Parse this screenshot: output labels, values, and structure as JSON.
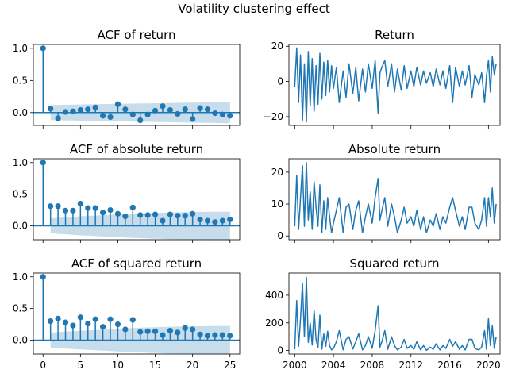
{
  "suptitle": "Volatility clustering effect",
  "colors": {
    "line": "#1f77b4",
    "band": "#1f77b4",
    "frame": "#000000"
  },
  "chart_data": [
    {
      "type": "stem",
      "title": "ACF of return",
      "xlim": [
        -1.3,
        26.3
      ],
      "ylim": [
        -0.2,
        1.06
      ],
      "yticks": [
        1.0,
        0.5,
        0.0
      ],
      "ytick_labels": [
        "1.0",
        "0.5",
        "0.0"
      ],
      "xticks": [
        0,
        5,
        10,
        15,
        20,
        25
      ],
      "xtick_labels": [],
      "lags": [
        0,
        1,
        2,
        3,
        4,
        5,
        6,
        7,
        8,
        9,
        10,
        11,
        12,
        13,
        14,
        15,
        16,
        17,
        18,
        19,
        20,
        21,
        22,
        23,
        24,
        25
      ],
      "values": [
        1.0,
        0.06,
        -0.09,
        0.01,
        0.02,
        0.04,
        0.05,
        0.08,
        -0.05,
        -0.07,
        0.13,
        0.05,
        -0.03,
        -0.12,
        -0.03,
        0.03,
        0.1,
        0.04,
        -0.02,
        0.05,
        -0.1,
        0.07,
        0.05,
        -0.01,
        -0.03,
        -0.05
      ],
      "conf_band": [
        0.118,
        0.12,
        0.122,
        0.124,
        0.126,
        0.128,
        0.13,
        0.132,
        0.134,
        0.136,
        0.138,
        0.14,
        0.142,
        0.144,
        0.146,
        0.148,
        0.15,
        0.152,
        0.154,
        0.156,
        0.158,
        0.16,
        0.162,
        0.164,
        0.166
      ]
    },
    {
      "type": "line",
      "title": "Return",
      "xlim": [
        1999.4,
        2021.2
      ],
      "ylim": [
        -25,
        21
      ],
      "yticks": [
        20,
        0,
        -20
      ],
      "ytick_labels": [
        "20",
        "0",
        "−20"
      ],
      "xticks": [
        2000,
        2004,
        2008,
        2012,
        2016,
        2020
      ],
      "xtick_labels": [],
      "x": [
        2000,
        2000.2,
        2000.4,
        2000.6,
        2000.8,
        2001,
        2001.2,
        2001.4,
        2001.6,
        2001.8,
        2002,
        2002.2,
        2002.4,
        2002.6,
        2002.8,
        2003,
        2003.2,
        2003.4,
        2003.6,
        2003.8,
        2004,
        2004.3,
        2004.6,
        2005,
        2005.3,
        2005.6,
        2006,
        2006.3,
        2006.6,
        2007,
        2007.3,
        2007.6,
        2008,
        2008.3,
        2008.6,
        2008.8,
        2009,
        2009.3,
        2009.6,
        2010,
        2010.3,
        2010.6,
        2011,
        2011.3,
        2011.6,
        2012,
        2012.3,
        2012.6,
        2013,
        2013.3,
        2013.6,
        2014,
        2014.3,
        2014.6,
        2015,
        2015.3,
        2015.6,
        2016,
        2016.3,
        2016.6,
        2017,
        2017.3,
        2017.6,
        2018,
        2018.3,
        2018.6,
        2019,
        2019.3,
        2019.6,
        2019.8,
        2020,
        2020.2,
        2020.4,
        2020.6,
        2020.8
      ],
      "y": [
        -3,
        19,
        -12,
        15,
        -22,
        10,
        -23,
        17,
        -14,
        13,
        -17,
        9,
        -13,
        16,
        -10,
        11,
        -8,
        12,
        -6,
        9,
        -4,
        8,
        -12,
        6,
        -9,
        10,
        -7,
        8,
        -11,
        7,
        -6,
        10,
        -4,
        12,
        -18,
        5,
        8,
        12,
        -3,
        10,
        -6,
        7,
        -5,
        9,
        -4,
        6,
        -3,
        8,
        -2,
        6,
        -1,
        5,
        -3,
        7,
        -2,
        6,
        -4,
        9,
        -12,
        8,
        -3,
        6,
        -2,
        9,
        -9,
        4,
        -2,
        5,
        -12,
        3,
        12,
        -6,
        14,
        4,
        10
      ]
    },
    {
      "type": "stem",
      "title": "ACF of absolute return",
      "xlim": [
        -1.3,
        26.3
      ],
      "ylim": [
        -0.22,
        1.06
      ],
      "yticks": [
        1.0,
        0.5,
        0.0
      ],
      "ytick_labels": [
        "1.0",
        "0.5",
        "0.0"
      ],
      "xticks": [
        0,
        5,
        10,
        15,
        20,
        25
      ],
      "xtick_labels": [],
      "lags": [
        0,
        1,
        2,
        3,
        4,
        5,
        6,
        7,
        8,
        9,
        10,
        11,
        12,
        13,
        14,
        15,
        16,
        17,
        18,
        19,
        20,
        21,
        22,
        23,
        24,
        25
      ],
      "values": [
        1.0,
        0.31,
        0.31,
        0.24,
        0.24,
        0.35,
        0.28,
        0.28,
        0.21,
        0.25,
        0.19,
        0.15,
        0.29,
        0.17,
        0.17,
        0.18,
        0.08,
        0.18,
        0.16,
        0.16,
        0.19,
        0.1,
        0.08,
        0.06,
        0.08,
        0.1
      ],
      "conf_band": [
        0.118,
        0.126,
        0.134,
        0.142,
        0.15,
        0.156,
        0.162,
        0.168,
        0.174,
        0.18,
        0.185,
        0.19,
        0.195,
        0.2,
        0.204,
        0.208,
        0.212,
        0.214,
        0.216,
        0.218,
        0.22,
        0.221,
        0.222,
        0.223,
        0.224
      ]
    },
    {
      "type": "line",
      "title": "Absolute return",
      "xlim": [
        1999.4,
        2021.2
      ],
      "ylim": [
        -1.2,
        24.2
      ],
      "yticks": [
        20,
        10,
        0
      ],
      "ytick_labels": [
        "20",
        "10",
        "0"
      ],
      "xticks": [
        2000,
        2004,
        2008,
        2012,
        2016,
        2020
      ],
      "xtick_labels": [],
      "x": [
        2000,
        2000.2,
        2000.4,
        2000.6,
        2000.8,
        2001,
        2001.2,
        2001.4,
        2001.6,
        2001.8,
        2002,
        2002.2,
        2002.4,
        2002.6,
        2002.8,
        2003,
        2003.2,
        2003.4,
        2003.6,
        2003.8,
        2004,
        2004.3,
        2004.6,
        2005,
        2005.3,
        2005.6,
        2006,
        2006.3,
        2006.6,
        2007,
        2007.3,
        2007.6,
        2008,
        2008.3,
        2008.6,
        2008.8,
        2009,
        2009.3,
        2009.6,
        2010,
        2010.3,
        2010.6,
        2011,
        2011.3,
        2011.6,
        2012,
        2012.3,
        2012.6,
        2013,
        2013.3,
        2013.6,
        2014,
        2014.3,
        2014.6,
        2015,
        2015.3,
        2015.6,
        2016,
        2016.3,
        2016.6,
        2017,
        2017.3,
        2017.6,
        2018,
        2018.3,
        2018.6,
        2019,
        2019.3,
        2019.6,
        2019.8,
        2020,
        2020.2,
        2020.4,
        2020.6,
        2020.8
      ],
      "y": [
        3,
        19,
        2,
        12,
        22,
        3,
        23,
        5,
        14,
        2,
        17,
        9,
        3,
        16,
        1,
        11,
        2,
        12,
        6,
        1,
        4,
        8,
        12,
        1,
        9,
        10,
        2,
        8,
        11,
        1,
        6,
        10,
        4,
        12,
        18,
        5,
        8,
        12,
        3,
        10,
        6,
        1,
        5,
        9,
        4,
        6,
        3,
        8,
        2,
        6,
        1,
        5,
        3,
        7,
        2,
        6,
        4,
        9,
        12,
        8,
        3,
        6,
        2,
        9,
        9,
        4,
        2,
        5,
        12,
        3,
        12,
        6,
        15,
        4,
        10
      ]
    },
    {
      "type": "stem",
      "title": "ACF of squared return",
      "xlim": [
        -1.3,
        26.3
      ],
      "ylim": [
        -0.22,
        1.06
      ],
      "yticks": [
        1.0,
        0.5,
        0.0
      ],
      "ytick_labels": [
        "1.0",
        "0.5",
        "0.0"
      ],
      "xticks": [
        0,
        5,
        10,
        15,
        20,
        25
      ],
      "xtick_labels": [
        "0",
        "5",
        "10",
        "15",
        "20",
        "25"
      ],
      "lags": [
        0,
        1,
        2,
        3,
        4,
        5,
        6,
        7,
        8,
        9,
        10,
        11,
        12,
        13,
        14,
        15,
        16,
        17,
        18,
        19,
        20,
        21,
        22,
        23,
        24,
        25
      ],
      "values": [
        1.0,
        0.3,
        0.34,
        0.28,
        0.23,
        0.36,
        0.26,
        0.33,
        0.21,
        0.33,
        0.25,
        0.17,
        0.32,
        0.13,
        0.14,
        0.14,
        0.08,
        0.15,
        0.12,
        0.19,
        0.17,
        0.09,
        0.07,
        0.08,
        0.08,
        0.07
      ],
      "conf_band": [
        0.118,
        0.126,
        0.134,
        0.142,
        0.148,
        0.154,
        0.16,
        0.166,
        0.172,
        0.178,
        0.184,
        0.19,
        0.195,
        0.2,
        0.204,
        0.208,
        0.212,
        0.214,
        0.216,
        0.218,
        0.22,
        0.221,
        0.222,
        0.223,
        0.224
      ]
    },
    {
      "type": "line",
      "title": "Squared return",
      "xlim": [
        1999.4,
        2021.2
      ],
      "ylim": [
        -25,
        560
      ],
      "yticks": [
        400,
        200,
        0
      ],
      "ytick_labels": [
        "400",
        "200",
        "0"
      ],
      "xticks": [
        2000,
        2004,
        2008,
        2012,
        2016,
        2020
      ],
      "xtick_labels": [
        "2000",
        "2004",
        "2008",
        "2012",
        "2016",
        "2020"
      ],
      "x": [
        2000,
        2000.2,
        2000.4,
        2000.6,
        2000.8,
        2001,
        2001.2,
        2001.4,
        2001.6,
        2001.8,
        2002,
        2002.2,
        2002.4,
        2002.6,
        2002.8,
        2003,
        2003.2,
        2003.4,
        2003.6,
        2003.8,
        2004,
        2004.3,
        2004.6,
        2005,
        2005.3,
        2005.6,
        2006,
        2006.3,
        2006.6,
        2007,
        2007.3,
        2007.6,
        2008,
        2008.3,
        2008.6,
        2008.8,
        2009,
        2009.3,
        2009.6,
        2010,
        2010.3,
        2010.6,
        2011,
        2011.3,
        2011.6,
        2012,
        2012.3,
        2012.6,
        2013,
        2013.3,
        2013.6,
        2014,
        2014.3,
        2014.6,
        2015,
        2015.3,
        2015.6,
        2016,
        2016.3,
        2016.6,
        2017,
        2017.3,
        2017.6,
        2018,
        2018.3,
        2018.6,
        2019,
        2019.3,
        2019.6,
        2019.8,
        2020,
        2020.2,
        2020.4,
        2020.6,
        2020.8
      ],
      "y": [
        9,
        361,
        30,
        230,
        484,
        100,
        529,
        60,
        200,
        40,
        290,
        81,
        20,
        256,
        10,
        120,
        30,
        140,
        36,
        5,
        16,
        64,
        144,
        5,
        81,
        100,
        10,
        64,
        121,
        5,
        36,
        100,
        16,
        144,
        324,
        25,
        64,
        144,
        9,
        100,
        36,
        5,
        25,
        81,
        16,
        36,
        9,
        64,
        4,
        36,
        2,
        25,
        9,
        49,
        4,
        36,
        16,
        81,
        30,
        64,
        9,
        36,
        4,
        81,
        81,
        16,
        4,
        25,
        144,
        9,
        230,
        36,
        180,
        16,
        100
      ]
    }
  ]
}
